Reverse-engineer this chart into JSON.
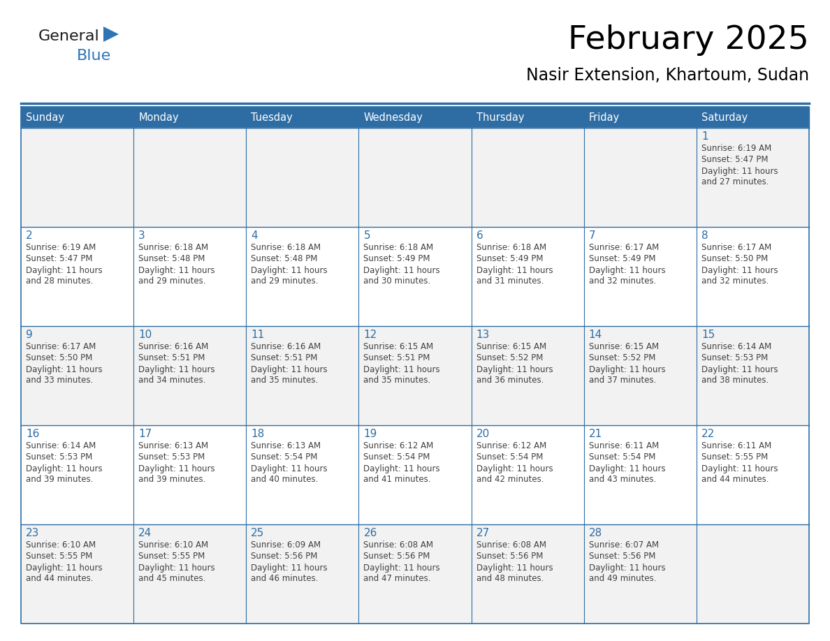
{
  "title": "February 2025",
  "subtitle": "Nasir Extension, Khartoum, Sudan",
  "days_of_week": [
    "Sunday",
    "Monday",
    "Tuesday",
    "Wednesday",
    "Thursday",
    "Friday",
    "Saturday"
  ],
  "header_bg": "#2E6DA4",
  "header_text": "#FFFFFF",
  "cell_bg_odd": "#F2F2F2",
  "cell_bg_even": "#FFFFFF",
  "cell_border": "#2E6DA4",
  "day_num_color": "#2E6DA4",
  "text_color": "#404040",
  "logo_general_color": "#1a1a1a",
  "logo_blue_color": "#2E75B6",
  "calendar": [
    [
      null,
      null,
      null,
      null,
      null,
      null,
      1
    ],
    [
      2,
      3,
      4,
      5,
      6,
      7,
      8
    ],
    [
      9,
      10,
      11,
      12,
      13,
      14,
      15
    ],
    [
      16,
      17,
      18,
      19,
      20,
      21,
      22
    ],
    [
      23,
      24,
      25,
      26,
      27,
      28,
      null
    ]
  ],
  "sun_data": {
    "1": {
      "rise": "6:19 AM",
      "set": "5:47 PM",
      "hours": 11,
      "mins": 27
    },
    "2": {
      "rise": "6:19 AM",
      "set": "5:47 PM",
      "hours": 11,
      "mins": 28
    },
    "3": {
      "rise": "6:18 AM",
      "set": "5:48 PM",
      "hours": 11,
      "mins": 29
    },
    "4": {
      "rise": "6:18 AM",
      "set": "5:48 PM",
      "hours": 11,
      "mins": 29
    },
    "5": {
      "rise": "6:18 AM",
      "set": "5:49 PM",
      "hours": 11,
      "mins": 30
    },
    "6": {
      "rise": "6:18 AM",
      "set": "5:49 PM",
      "hours": 11,
      "mins": 31
    },
    "7": {
      "rise": "6:17 AM",
      "set": "5:49 PM",
      "hours": 11,
      "mins": 32
    },
    "8": {
      "rise": "6:17 AM",
      "set": "5:50 PM",
      "hours": 11,
      "mins": 32
    },
    "9": {
      "rise": "6:17 AM",
      "set": "5:50 PM",
      "hours": 11,
      "mins": 33
    },
    "10": {
      "rise": "6:16 AM",
      "set": "5:51 PM",
      "hours": 11,
      "mins": 34
    },
    "11": {
      "rise": "6:16 AM",
      "set": "5:51 PM",
      "hours": 11,
      "mins": 35
    },
    "12": {
      "rise": "6:15 AM",
      "set": "5:51 PM",
      "hours": 11,
      "mins": 35
    },
    "13": {
      "rise": "6:15 AM",
      "set": "5:52 PM",
      "hours": 11,
      "mins": 36
    },
    "14": {
      "rise": "6:15 AM",
      "set": "5:52 PM",
      "hours": 11,
      "mins": 37
    },
    "15": {
      "rise": "6:14 AM",
      "set": "5:53 PM",
      "hours": 11,
      "mins": 38
    },
    "16": {
      "rise": "6:14 AM",
      "set": "5:53 PM",
      "hours": 11,
      "mins": 39
    },
    "17": {
      "rise": "6:13 AM",
      "set": "5:53 PM",
      "hours": 11,
      "mins": 39
    },
    "18": {
      "rise": "6:13 AM",
      "set": "5:54 PM",
      "hours": 11,
      "mins": 40
    },
    "19": {
      "rise": "6:12 AM",
      "set": "5:54 PM",
      "hours": 11,
      "mins": 41
    },
    "20": {
      "rise": "6:12 AM",
      "set": "5:54 PM",
      "hours": 11,
      "mins": 42
    },
    "21": {
      "rise": "6:11 AM",
      "set": "5:54 PM",
      "hours": 11,
      "mins": 43
    },
    "22": {
      "rise": "6:11 AM",
      "set": "5:55 PM",
      "hours": 11,
      "mins": 44
    },
    "23": {
      "rise": "6:10 AM",
      "set": "5:55 PM",
      "hours": 11,
      "mins": 44
    },
    "24": {
      "rise": "6:10 AM",
      "set": "5:55 PM",
      "hours": 11,
      "mins": 45
    },
    "25": {
      "rise": "6:09 AM",
      "set": "5:56 PM",
      "hours": 11,
      "mins": 46
    },
    "26": {
      "rise": "6:08 AM",
      "set": "5:56 PM",
      "hours": 11,
      "mins": 47
    },
    "27": {
      "rise": "6:08 AM",
      "set": "5:56 PM",
      "hours": 11,
      "mins": 48
    },
    "28": {
      "rise": "6:07 AM",
      "set": "5:56 PM",
      "hours": 11,
      "mins": 49
    }
  }
}
